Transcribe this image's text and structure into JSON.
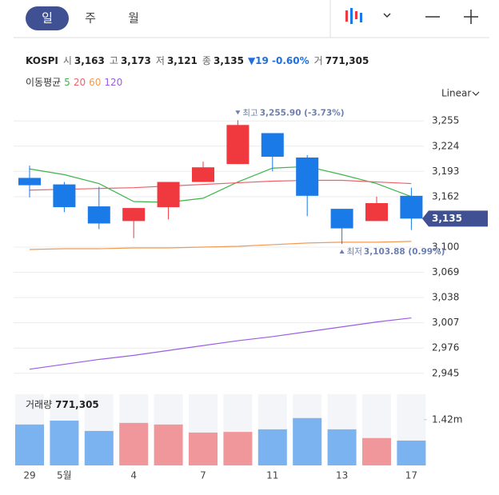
{
  "tabs": [
    "일",
    "주",
    "월"
  ],
  "info": {
    "name": "KOSPI",
    "items": [
      {
        "label": "시",
        "value": "3,163"
      },
      {
        "label": "고",
        "value": "3,173"
      },
      {
        "label": "저",
        "value": "3,121"
      },
      {
        "label": "종",
        "value": "3,135"
      }
    ],
    "change": "▼19 -0.60%",
    "volume": {
      "label": "거",
      "value": "771,305"
    }
  },
  "scale_mode": "Linear",
  "chart_data": {
    "type": "candlestick",
    "categories": [
      "29",
      "5월",
      null,
      "4",
      null,
      "7",
      null,
      "11",
      null,
      "13",
      null,
      "17"
    ],
    "open": [
      3185,
      3177,
      3150,
      3132,
      3149,
      3180,
      3202,
      3240,
      3210,
      3147,
      3132,
      3163
    ],
    "high": [
      3200,
      3180,
      3174,
      3148,
      3180,
      3205,
      3255.9,
      3240,
      3213,
      3147,
      3162,
      3173
    ],
    "low": [
      3161,
      3143,
      3122,
      3111,
      3134,
      3180,
      3202,
      3193,
      3138,
      3103.88,
      3132,
      3121
    ],
    "close": [
      3176,
      3149,
      3129,
      3148,
      3180,
      3198,
      3250,
      3211,
      3163,
      3123,
      3154,
      3135
    ],
    "up_color": "#f0383f",
    "down_color": "#1a7ae8",
    "ylim": [
      2932,
      3266
    ],
    "yticks": [
      {
        "value": 3255,
        "label": "3,255"
      },
      {
        "value": 3224,
        "label": "3,224"
      },
      {
        "value": 3193,
        "label": "3,193"
      },
      {
        "value": 3162,
        "label": "3,162"
      },
      {
        "value": 3100,
        "label": "3,100"
      },
      {
        "value": 3069,
        "label": "3,069"
      },
      {
        "value": 3038,
        "label": "3,038"
      },
      {
        "value": 3007,
        "label": "3,007"
      },
      {
        "value": 2976,
        "label": "2,976"
      },
      {
        "value": 2945,
        "label": "2,945"
      }
    ],
    "grid": true,
    "last_label": "3,135",
    "high_note": {
      "label": "최고",
      "text": "3,255.90 (-3.73%)"
    },
    "low_note": {
      "label": "최저",
      "text": "3,103.88 (0.99%)"
    },
    "ma_label": "이동평균",
    "ma": [
      {
        "name": "5",
        "color": "#3cb54a",
        "values": [
          3196,
          3189,
          3178,
          3156,
          3155,
          3160,
          3180,
          3197,
          3199,
          3189,
          3178,
          3162
        ]
      },
      {
        "name": "20",
        "color": "#f0606a",
        "values": [
          3170,
          3171,
          3172,
          3173,
          3175,
          3177,
          3179,
          3181,
          3182,
          3182,
          3180,
          3178
        ]
      },
      {
        "name": "60",
        "color": "#f29a52",
        "values": [
          3097,
          3098,
          3098,
          3099,
          3099,
          3100,
          3101,
          3103,
          3105,
          3106,
          3106,
          3107
        ]
      },
      {
        "name": "120",
        "color": "#9b5de5",
        "values": [
          2950,
          2956,
          2962,
          2967,
          2973,
          2979,
          2985,
          2990,
          2996,
          3002,
          3008,
          3013
        ]
      }
    ],
    "volume": {
      "label": "거래량",
      "value_label": "771,305",
      "values": [
        1270000,
        1390000,
        1070000,
        1320000,
        1270000,
        1020000,
        1040000,
        1120000,
        1470000,
        1120000,
        850000,
        771305
      ],
      "up_color": "#f0979c",
      "down_color": "#7ab3f0",
      "ylim": [
        0,
        2210000
      ],
      "yticks": [
        {
          "value": 1420000,
          "label": "1.42m"
        }
      ]
    }
  }
}
